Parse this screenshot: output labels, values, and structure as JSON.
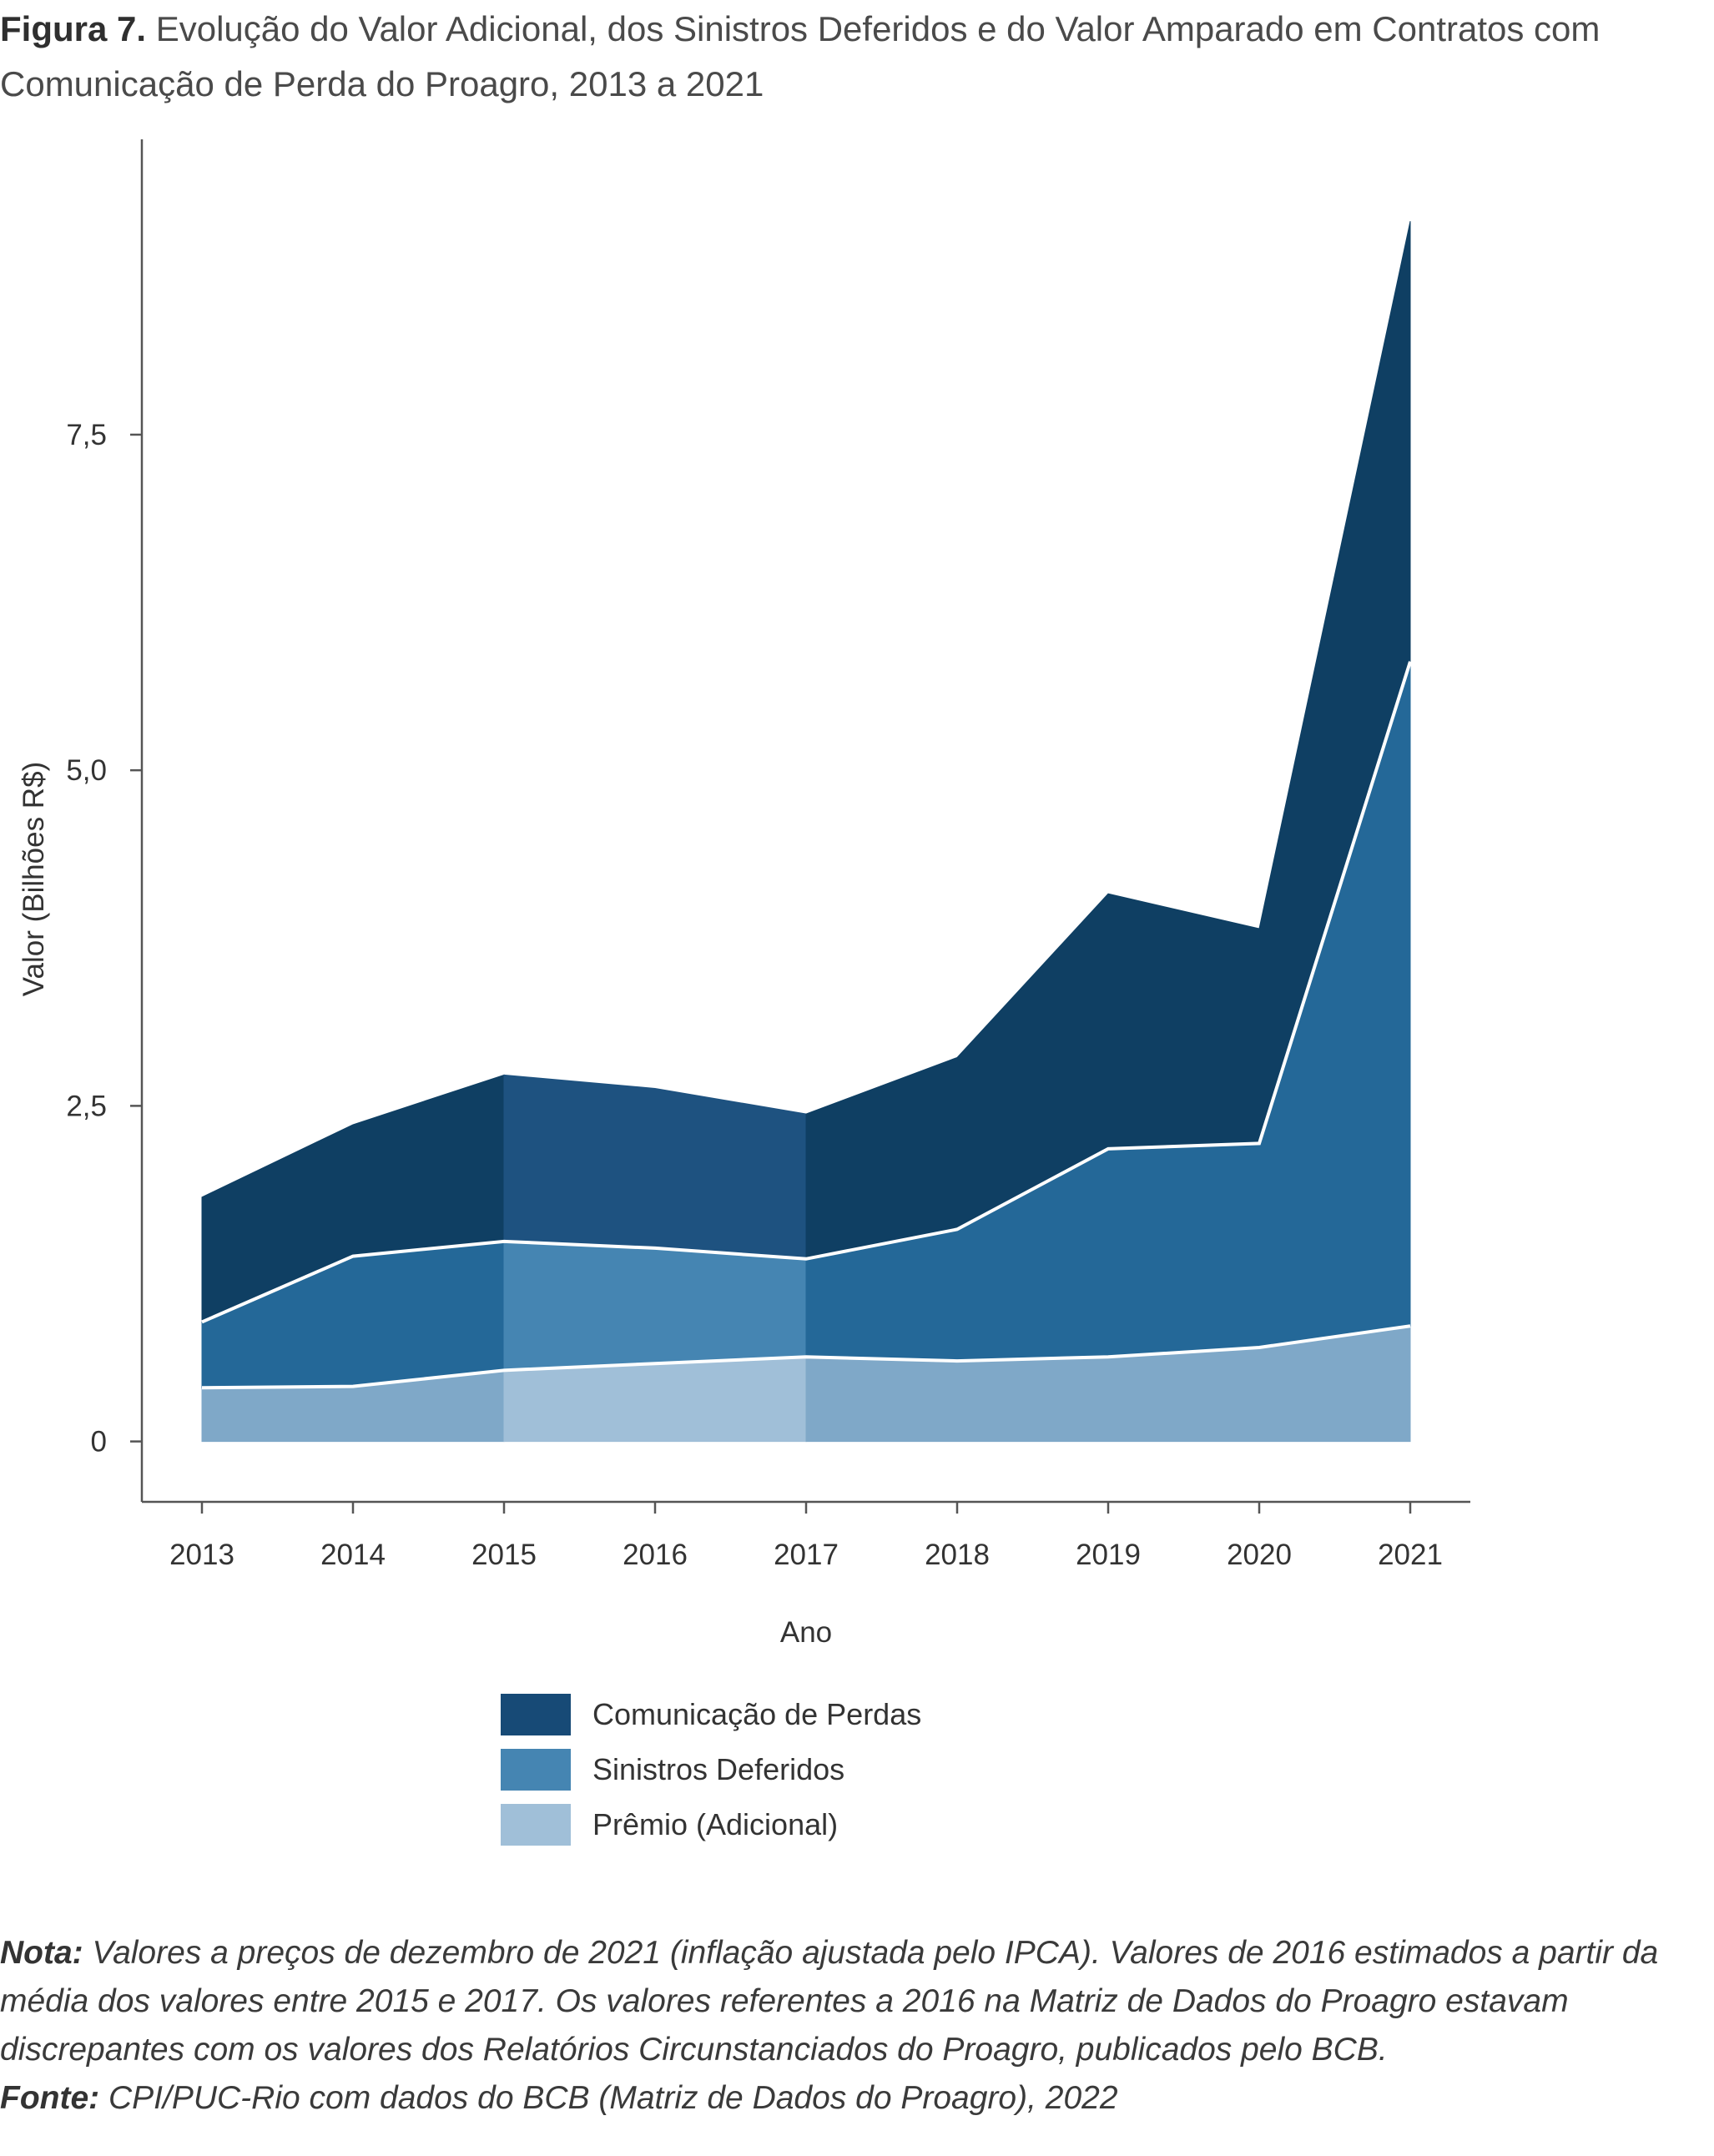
{
  "figure": {
    "label": "Figura 7.",
    "title": "Evolução do Valor Adicional, dos Sinistros Deferidos e do Valor Amparado em Contratos com Comunicação de Perda do Proagro, 2013 a 2021"
  },
  "chart_data": {
    "type": "area",
    "stacked": true,
    "x": [
      2013,
      2014,
      2015,
      2016,
      2017,
      2018,
      2019,
      2020,
      2021
    ],
    "xlabel": "Ano",
    "ylabel": "Valor (Bilhões R$)",
    "ylim": [
      -0.45,
      9.7
    ],
    "yticks": [
      0,
      2.5,
      5.0,
      7.5
    ],
    "ytick_labels": [
      "0",
      "2,5",
      "5,0",
      "7,5"
    ],
    "grid": false,
    "legend_position": "bottom",
    "series": [
      {
        "name": "Prêmio (Adicional)",
        "values": [
          0.4,
          0.41,
          0.53,
          0.58,
          0.63,
          0.6,
          0.63,
          0.7,
          0.86
        ],
        "color": "#7fa8c8",
        "color_2016": "#a0bfd8"
      },
      {
        "name": "Sinistros Deferidos",
        "values": [
          0.49,
          0.97,
          0.96,
          0.86,
          0.73,
          0.98,
          1.55,
          1.52,
          4.95
        ],
        "color": "#246898",
        "color_2016": "#4585b2"
      },
      {
        "name": "Comunicação de Perdas",
        "values": [
          0.93,
          0.98,
          1.24,
          1.19,
          1.08,
          1.28,
          1.9,
          1.6,
          3.28
        ],
        "color": "#0f3f63",
        "color_2016": "#1e5280"
      }
    ],
    "legend_colors": [
      "#174a76",
      "#4585b2",
      "#a0bfd8"
    ]
  },
  "notes": {
    "nota_label": "Nota:",
    "nota_text": "Valores a preços de dezembro de 2021 (inflação ajustada pelo IPCA). Valores de 2016 estimados a partir da média dos valores entre 2015 e 2017. Os valores referentes a 2016 na Matriz de Dados do Proagro estavam discrepantes com os valores dos Relatórios Circunstanciados do Proagro, publicados pelo BCB.",
    "fonte_label": "Fonte:",
    "fonte_text": "CPI/PUC-Rio com dados do BCB (Matriz de Dados do Proagro), 2022"
  }
}
